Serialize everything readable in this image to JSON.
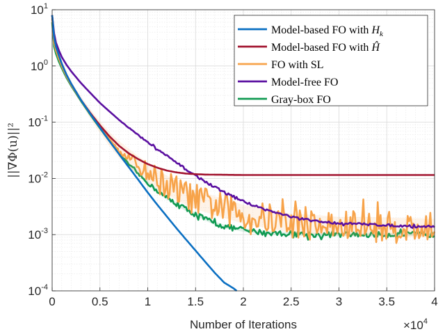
{
  "chart_data": {
    "type": "line",
    "title": "",
    "xlabel": "Number of Iterations",
    "ylabel": "||∇Φ(u)||²",
    "x_scale_label": {
      "base": "×10",
      "exp": "4"
    },
    "xlim": [
      0,
      40000
    ],
    "ylim": [
      0.0001,
      10
    ],
    "yscale": "log",
    "grid": true,
    "legend_position": "top-right",
    "x_ticks": [
      {
        "value": 0,
        "label": "0"
      },
      {
        "value": 5000,
        "label": "0.5"
      },
      {
        "value": 10000,
        "label": "1"
      },
      {
        "value": 15000,
        "label": "1.5"
      },
      {
        "value": 20000,
        "label": "2"
      },
      {
        "value": 25000,
        "label": "2.5"
      },
      {
        "value": 30000,
        "label": "3"
      },
      {
        "value": 35000,
        "label": "3.5"
      },
      {
        "value": 40000,
        "label": "4"
      }
    ],
    "y_ticks": [
      {
        "value": 0.0001,
        "base": "10",
        "exp": "-4"
      },
      {
        "value": 0.001,
        "base": "10",
        "exp": "-3"
      },
      {
        "value": 0.01,
        "base": "10",
        "exp": "-2"
      },
      {
        "value": 0.1,
        "base": "10",
        "exp": "-1"
      },
      {
        "value": 1,
        "base": "10",
        "exp": "0"
      },
      {
        "value": 10,
        "base": "10",
        "exp": "1"
      }
    ],
    "series": [
      {
        "name": "Model-based FO with H_k",
        "legend_main": "Model-based FO with ",
        "legend_math": "H",
        "legend_sub": "k",
        "color": "#0a6fc2",
        "noise": 0,
        "x": [
          0,
          200,
          400,
          700,
          1000,
          1500,
          2000,
          3000,
          4000,
          5000,
          6000,
          7000,
          8000,
          9000,
          10000,
          11000,
          12000,
          13000,
          14000,
          15000,
          16000,
          17000,
          18000,
          19000,
          19300
        ],
        "y": [
          8,
          3.2,
          2.2,
          1.55,
          1.1,
          0.7,
          0.48,
          0.25,
          0.14,
          0.08,
          0.046,
          0.027,
          0.016,
          0.0095,
          0.0056,
          0.0034,
          0.0021,
          0.0013,
          0.00082,
          0.00052,
          0.00033,
          0.00021,
          0.00014,
          0.00011,
          0.0001
        ]
      },
      {
        "name": "Model-based FO with Ĥ",
        "legend_main": "Model-based FO with ",
        "legend_math": "Ĥ",
        "legend_sub": "",
        "color": "#a2142f",
        "noise": 0,
        "x": [
          0,
          200,
          400,
          700,
          1000,
          1500,
          2000,
          3000,
          4000,
          5000,
          6000,
          7000,
          8000,
          9000,
          10000,
          11000,
          12000,
          13000,
          14000,
          15000,
          16000,
          18000,
          20000,
          25000,
          30000,
          35000,
          40000
        ],
        "y": [
          8,
          3.2,
          2.2,
          1.55,
          1.1,
          0.7,
          0.48,
          0.25,
          0.145,
          0.088,
          0.056,
          0.038,
          0.028,
          0.022,
          0.018,
          0.0155,
          0.0138,
          0.0128,
          0.0122,
          0.0119,
          0.0117,
          0.0116,
          0.0115,
          0.0115,
          0.0115,
          0.0115,
          0.0115
        ]
      },
      {
        "name": "FO with SL",
        "legend_main": "FO with SL",
        "legend_math": "",
        "legend_sub": "",
        "color": "#f7a34a",
        "noise": 0.28,
        "x": [
          0,
          200,
          400,
          700,
          1000,
          1500,
          2000,
          3000,
          4000,
          5000,
          6000,
          7000,
          8000,
          9000,
          10000,
          11000,
          12000,
          13000,
          14000,
          15000,
          16000,
          17000,
          18000,
          19000,
          20000,
          22000,
          25000,
          28000,
          30000,
          33000,
          36000,
          40000
        ],
        "y": [
          7,
          2.6,
          1.9,
          1.35,
          1.0,
          0.66,
          0.46,
          0.25,
          0.14,
          0.082,
          0.05,
          0.033,
          0.023,
          0.017,
          0.013,
          0.0098,
          0.0076,
          0.0061,
          0.005,
          0.0042,
          0.0037,
          0.0033,
          0.0029,
          0.0026,
          0.0023,
          0.002,
          0.0016,
          0.0015,
          0.0014,
          0.0014,
          0.00135,
          0.0013
        ]
      },
      {
        "name": "Model-free FO",
        "legend_main": "Model-free FO",
        "legend_math": "",
        "legend_sub": "",
        "color": "#5a0fa0",
        "noise": 0.02,
        "x": [
          0,
          200,
          400,
          700,
          1000,
          1500,
          2000,
          3000,
          4000,
          5000,
          6000,
          7000,
          8000,
          9000,
          10000,
          11000,
          12000,
          13000,
          14000,
          15000,
          16000,
          17000,
          18000,
          19000,
          20000,
          22000,
          24000,
          26000,
          28000,
          30000,
          32000,
          34000,
          36000,
          38000,
          40000
        ],
        "y": [
          8,
          3.8,
          2.6,
          1.9,
          1.45,
          1.05,
          0.8,
          0.5,
          0.33,
          0.22,
          0.155,
          0.11,
          0.08,
          0.059,
          0.044,
          0.033,
          0.025,
          0.019,
          0.0145,
          0.0112,
          0.0088,
          0.007,
          0.0057,
          0.0047,
          0.0039,
          0.0029,
          0.0023,
          0.0019,
          0.0017,
          0.0016,
          0.00155,
          0.0015,
          0.00145,
          0.0014,
          0.0014
        ]
      },
      {
        "name": "Gray-box FO",
        "legend_main": "Gray-box FO",
        "legend_math": "",
        "legend_sub": "",
        "color": "#109a52",
        "noise": 0.05,
        "x": [
          0,
          200,
          400,
          700,
          1000,
          1500,
          2000,
          3000,
          4000,
          5000,
          6000,
          7000,
          8000,
          9000,
          10000,
          11000,
          12000,
          13000,
          14000,
          15000,
          16000,
          17000,
          18000,
          19000,
          20000,
          22000,
          24000,
          26000,
          28000,
          30000,
          32000,
          34000,
          36000,
          38000,
          40000
        ],
        "y": [
          6,
          2.2,
          1.65,
          1.2,
          0.92,
          0.62,
          0.44,
          0.24,
          0.135,
          0.078,
          0.046,
          0.028,
          0.018,
          0.012,
          0.0083,
          0.006,
          0.0045,
          0.0035,
          0.0028,
          0.0023,
          0.0019,
          0.0016,
          0.0014,
          0.0013,
          0.0012,
          0.0011,
          0.00105,
          0.00102,
          0.001,
          0.001,
          0.001,
          0.001,
          0.001,
          0.00102,
          0.001
        ]
      }
    ]
  }
}
